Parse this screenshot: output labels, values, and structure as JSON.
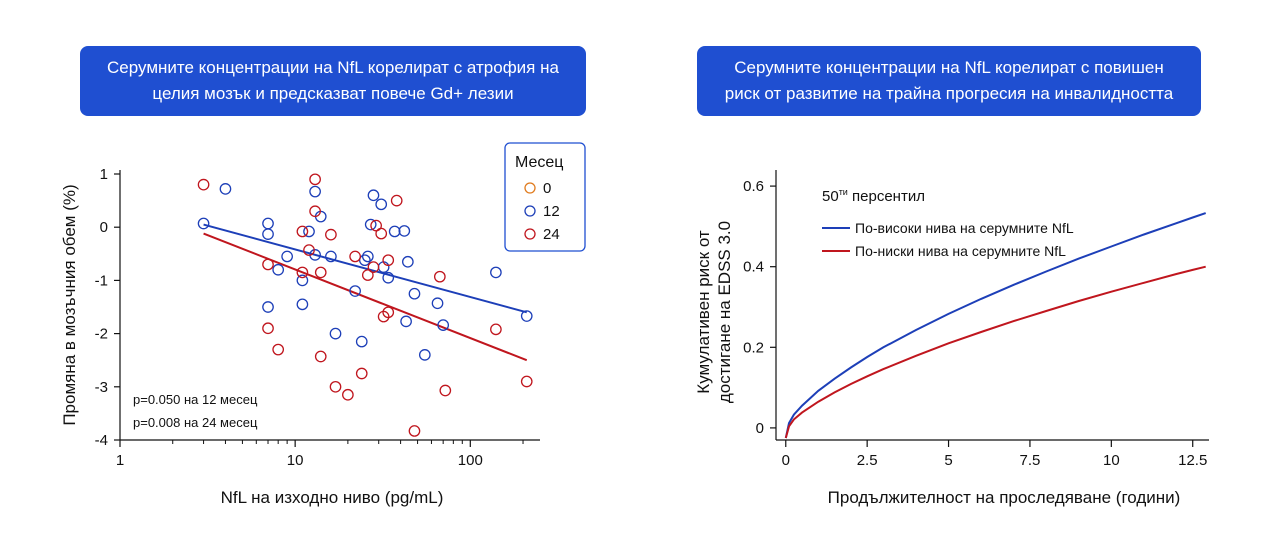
{
  "banners": {
    "left": {
      "line1": "Серумните концентрации на NfL корелират с атрофия на",
      "line2": "целия мозък и предсказват повече Gd+ лезии"
    },
    "right": {
      "line1": "Серумните концентрации на NfL корелират с повишен",
      "line2": "риск от развитие на трайна прогресия на инвалидността"
    }
  },
  "colors": {
    "banner": "#1f4fd1",
    "month_0": "#e07b1e",
    "month_12": "#1d3fb8",
    "month_24": "#c0161e",
    "higher": "#1d3fb8",
    "lower": "#c0161e"
  },
  "chart_data": [
    {
      "type": "scatter",
      "xlabel": "NfL на изходно ниво (pg/mL)",
      "ylabel": "Промяна в мозъчния обем (%)",
      "x_scale": "log",
      "xlim": [
        1,
        250
      ],
      "ylim": [
        -4,
        1
      ],
      "x_ticks": [
        1,
        10,
        100
      ],
      "x_tick_labels": [
        "1",
        "10",
        "100"
      ],
      "y_ticks": [
        1,
        0,
        -1,
        -2,
        -3,
        -4
      ],
      "y_tick_labels": [
        "1",
        "0",
        "-1",
        "-2",
        "-3",
        "-4"
      ],
      "legend": {
        "title": "Месец",
        "position": "top-right",
        "entries": [
          {
            "label": "0",
            "color_key": "month_0"
          },
          {
            "label": "12",
            "color_key": "month_12"
          },
          {
            "label": "24",
            "color_key": "month_24"
          }
        ]
      },
      "annotations": [
        "p=0.050 на 12 месец",
        "p=0.008 на 24 месец"
      ],
      "series": [
        {
          "name": "12",
          "color_key": "month_12",
          "points": [
            [
              3,
              0.07
            ],
            [
              4,
              0.72
            ],
            [
              7,
              0.07
            ],
            [
              7,
              -0.13
            ],
            [
              7,
              -1.5
            ],
            [
              8,
              -0.8
            ],
            [
              9,
              -0.55
            ],
            [
              11,
              -1.0
            ],
            [
              11,
              -1.45
            ],
            [
              12,
              -0.08
            ],
            [
              13,
              0.67
            ],
            [
              13,
              -0.52
            ],
            [
              14,
              0.2
            ],
            [
              16,
              -0.55
            ],
            [
              17,
              -2.0
            ],
            [
              22,
              -1.2
            ],
            [
              24,
              -2.15
            ],
            [
              25,
              -0.62
            ],
            [
              26,
              -0.55
            ],
            [
              27,
              0.05
            ],
            [
              28,
              0.6
            ],
            [
              31,
              0.43
            ],
            [
              32,
              -0.75
            ],
            [
              34,
              -0.95
            ],
            [
              37,
              -0.08
            ],
            [
              42,
              -0.07
            ],
            [
              43,
              -1.77
            ],
            [
              44,
              -0.65
            ],
            [
              48,
              -1.25
            ],
            [
              55,
              -2.4
            ],
            [
              65,
              -1.43
            ],
            [
              70,
              -1.84
            ],
            [
              140,
              -0.85
            ],
            [
              210,
              -1.67
            ]
          ]
        },
        {
          "name": "24",
          "color_key": "month_24",
          "points": [
            [
              3,
              0.8
            ],
            [
              7,
              -0.7
            ],
            [
              7,
              -1.9
            ],
            [
              8,
              -2.3
            ],
            [
              11,
              -0.08
            ],
            [
              11,
              -0.85
            ],
            [
              12,
              -0.43
            ],
            [
              13,
              0.9
            ],
            [
              13,
              0.3
            ],
            [
              14,
              -0.85
            ],
            [
              14,
              -2.43
            ],
            [
              16,
              -0.14
            ],
            [
              17,
              -3.0
            ],
            [
              20,
              -3.15
            ],
            [
              22,
              -0.55
            ],
            [
              24,
              -2.75
            ],
            [
              26,
              -0.9
            ],
            [
              28,
              -0.75
            ],
            [
              29,
              0.03
            ],
            [
              31,
              -0.12
            ],
            [
              32,
              -1.68
            ],
            [
              34,
              -1.6
            ],
            [
              34,
              -0.62
            ],
            [
              38,
              0.5
            ],
            [
              48,
              -3.83
            ],
            [
              67,
              -0.93
            ],
            [
              72,
              -3.07
            ],
            [
              140,
              -1.92
            ],
            [
              210,
              -2.9
            ]
          ]
        }
      ],
      "trendlines": [
        {
          "name": "12",
          "color_key": "month_12",
          "x": [
            3,
            210
          ],
          "y": [
            0.05,
            -1.6
          ]
        },
        {
          "name": "24",
          "color_key": "month_24",
          "x": [
            3,
            210
          ],
          "y": [
            -0.12,
            -2.5
          ]
        }
      ]
    },
    {
      "type": "line",
      "xlabel": "Продължителност на проследяване (години)",
      "ylabel": "Кумулативен риск от достигане на EDSS 3.0",
      "ylabel_lines": [
        "Кумулативен риск от",
        "достигане на EDSS 3.0"
      ],
      "xlim": [
        -0.3,
        13
      ],
      "ylim": [
        -0.03,
        0.63
      ],
      "x_ticks": [
        0,
        2.5,
        5,
        7.5,
        10,
        12.5
      ],
      "x_tick_labels": [
        "0",
        "2.5",
        "5",
        "7.5",
        "10",
        "12.5"
      ],
      "y_ticks": [
        0,
        0.2,
        0.4,
        0.6
      ],
      "y_tick_labels": [
        "0",
        "0.2",
        "0.4",
        "0.6"
      ],
      "subtitle_base": "50",
      "subtitle_sup": "ти",
      "subtitle_rest": " персентил",
      "legend_position": "top-left",
      "series": [
        {
          "name": "По-високи нива на серумните NfL",
          "color_key": "higher",
          "x": [
            0,
            0.1,
            0.25,
            0.5,
            1,
            1.5,
            2,
            2.5,
            3,
            4,
            5,
            6,
            7,
            8,
            9,
            10,
            11,
            12,
            12.5,
            12.9
          ],
          "y": [
            -0.025,
            0.012,
            0.033,
            0.055,
            0.092,
            0.122,
            0.15,
            0.176,
            0.2,
            0.243,
            0.283,
            0.32,
            0.355,
            0.388,
            0.42,
            0.45,
            0.48,
            0.508,
            0.522,
            0.533
          ]
        },
        {
          "name": "По-ниски нива на серумните NfL",
          "color_key": "lower",
          "x": [
            0,
            0.1,
            0.25,
            0.5,
            1,
            1.5,
            2,
            2.5,
            3,
            4,
            5,
            6,
            7,
            8,
            9,
            10,
            11,
            12,
            12.5,
            12.9
          ],
          "y": [
            -0.025,
            0.004,
            0.021,
            0.038,
            0.065,
            0.088,
            0.109,
            0.128,
            0.146,
            0.179,
            0.21,
            0.238,
            0.265,
            0.29,
            0.315,
            0.338,
            0.36,
            0.382,
            0.392,
            0.4
          ]
        }
      ]
    }
  ]
}
